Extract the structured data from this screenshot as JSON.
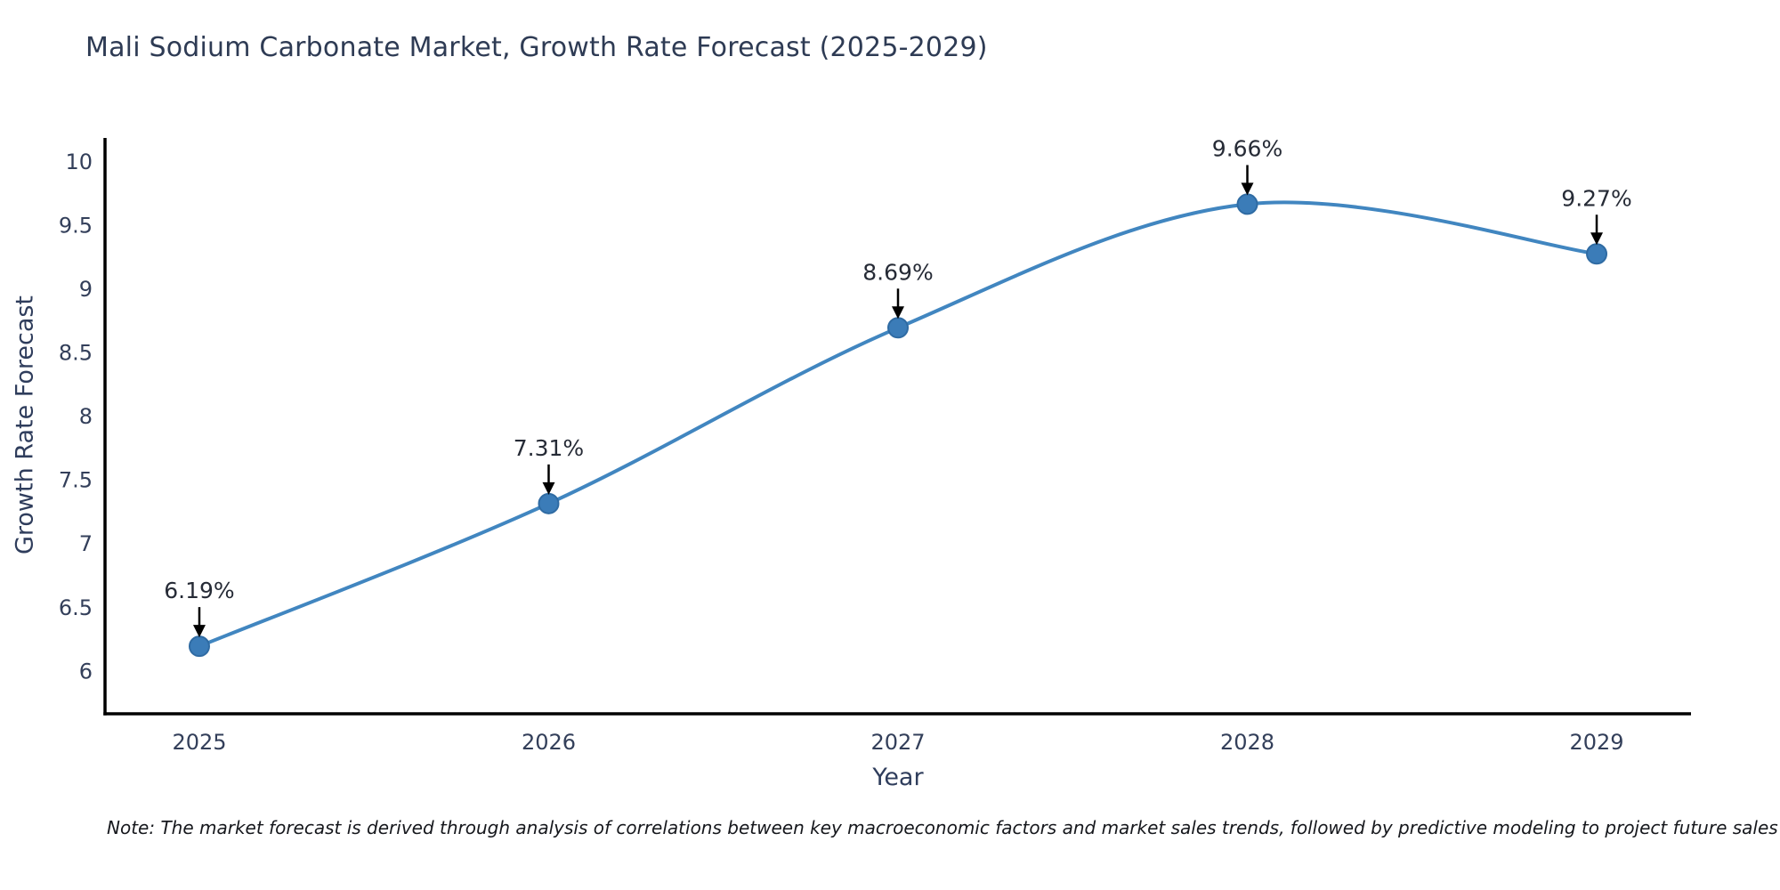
{
  "title": "Mali Sodium Carbonate Market, Growth Rate Forecast (2025-2029)",
  "note": "Note: The market forecast is derived through analysis of correlations between key macroeconomic factors and market sales trends, followed by predictive modeling to project future sales",
  "colors": {
    "line": "#4186c0",
    "marker_fill": "#3b7cb8",
    "marker_edge": "#2f6ba3",
    "axis_spine": "#000000",
    "title_text": "#2e3b54",
    "tick_text": "#333f5a",
    "annotation_text": "#262b36",
    "arrow": "#000000",
    "background": "#ffffff"
  },
  "chart_data": {
    "type": "line",
    "title": "Mali Sodium Carbonate Market, Growth Rate Forecast (2025-2029)",
    "xlabel": "Year",
    "ylabel": "Growth Rate Forecast",
    "x": [
      2025,
      2026,
      2027,
      2028,
      2029
    ],
    "values": [
      6.19,
      7.31,
      8.69,
      9.66,
      9.27
    ],
    "point_labels": [
      "6.19%",
      "7.31%",
      "8.69%",
      "9.66%",
      "9.27%"
    ],
    "xticks": [
      2025,
      2026,
      2027,
      2028,
      2029
    ],
    "yticks": [
      6,
      6.5,
      7,
      7.5,
      8,
      8.5,
      9,
      9.5,
      10
    ],
    "xlim": [
      2024.73,
      2029.27
    ],
    "ylim": [
      5.66,
      10.18
    ],
    "grid": false,
    "legend": false,
    "curve": "smooth",
    "annotation_style": "label-above-with-down-arrow"
  }
}
